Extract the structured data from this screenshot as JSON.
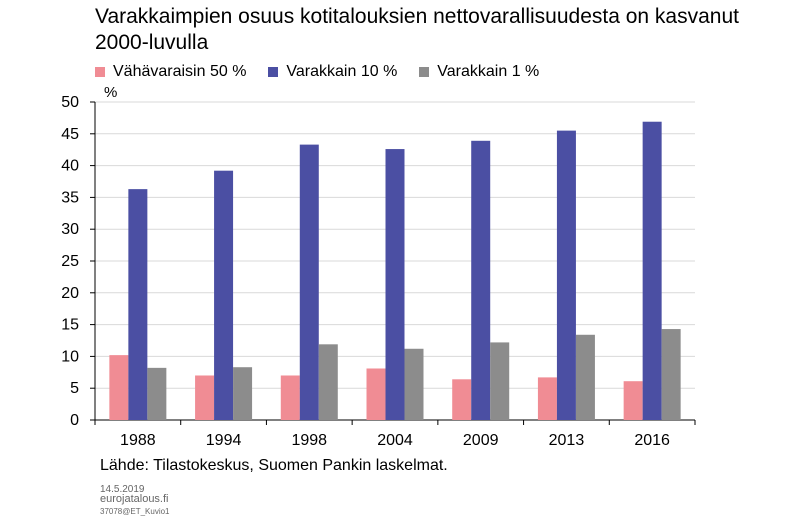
{
  "title": "Varakkaimpien osuus kotitalouksien nettovarallisuudesta on kasvanut 2000-luvulla",
  "unit_label": "%",
  "source": "Lähde: Tilastokeskus, Suomen Pankin laskelmat.",
  "footer": {
    "date": "14.5.2019",
    "site": "eurojatalous.fi",
    "code": "37078@ET_Kuvio1"
  },
  "chart_data": {
    "type": "bar",
    "categories": [
      "1988",
      "1994",
      "1998",
      "2004",
      "2009",
      "2013",
      "2016"
    ],
    "series": [
      {
        "name": "Vähävaraisin 50 %",
        "color": "#F08C94",
        "values": [
          10.2,
          7.0,
          7.0,
          8.1,
          6.4,
          6.7,
          6.1
        ]
      },
      {
        "name": "Varakkain 10 %",
        "color": "#4B4FA3",
        "values": [
          36.3,
          39.2,
          43.3,
          42.6,
          43.9,
          45.5,
          46.9
        ]
      },
      {
        "name": "Varakkain 1 %",
        "color": "#8C8C8C",
        "values": [
          8.2,
          8.3,
          11.9,
          11.2,
          12.2,
          13.4,
          14.3
        ]
      }
    ],
    "ylim": [
      0,
      50
    ],
    "yticks": [
      0,
      5,
      10,
      15,
      20,
      25,
      30,
      35,
      40,
      45,
      50
    ],
    "grid": true,
    "legend_position": "top-left"
  }
}
